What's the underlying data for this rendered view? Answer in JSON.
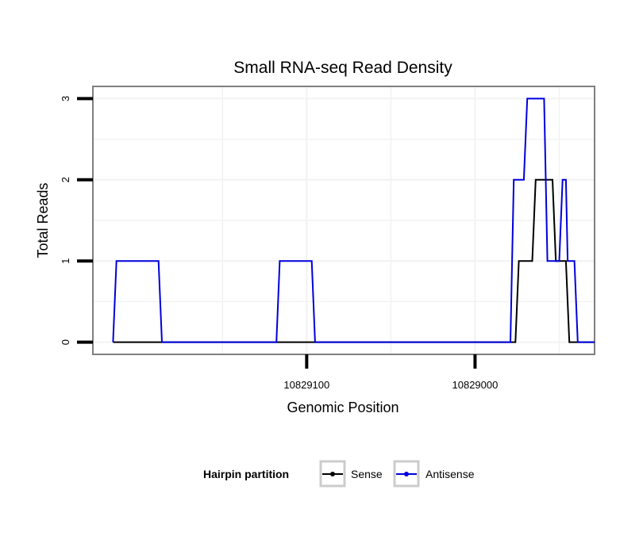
{
  "chart_data": {
    "type": "line",
    "title": "Small RNA-seq Read Density",
    "xlabel": "Genomic Position",
    "ylabel": "Total Reads",
    "xlim": [
      10829227,
      10828929
    ],
    "ylim": [
      -0.15,
      3.15
    ],
    "x_reversed": true,
    "x_ticks": [
      {
        "value": 10829100,
        "label": "10829100"
      },
      {
        "value": 10829000,
        "label": "10829000"
      }
    ],
    "y_ticks": [
      {
        "value": 0,
        "label": "0"
      },
      {
        "value": 1,
        "label": "1"
      },
      {
        "value": 2,
        "label": "2"
      },
      {
        "value": 3,
        "label": "3"
      }
    ],
    "grid": true,
    "legend": {
      "title": "Hairpin partition",
      "position": "bottom",
      "entries": [
        {
          "name": "Sense",
          "color": "#000000"
        },
        {
          "name": "Antisense",
          "color": "#0000dd"
        }
      ]
    },
    "series": [
      {
        "name": "Sense",
        "color": "#000000",
        "points": [
          [
            10829215,
            0
          ],
          [
            10828976,
            0
          ],
          [
            10828974,
            1
          ],
          [
            10828966,
            1
          ],
          [
            10828964,
            2
          ],
          [
            10828954,
            2
          ],
          [
            10828952,
            1
          ],
          [
            10828946,
            1
          ],
          [
            10828944,
            0
          ],
          [
            10828929,
            0
          ]
        ]
      },
      {
        "name": "Antisense",
        "color": "#0000dd",
        "points": [
          [
            10829215,
            0
          ],
          [
            10829213,
            1
          ],
          [
            10829188,
            1
          ],
          [
            10829186,
            0
          ],
          [
            10829118,
            0
          ],
          [
            10829116,
            1
          ],
          [
            10829097,
            1
          ],
          [
            10829095,
            0
          ],
          [
            10828979,
            0
          ],
          [
            10828977,
            2
          ],
          [
            10828971,
            2
          ],
          [
            10828969,
            3
          ],
          [
            10828959,
            3
          ],
          [
            10828957,
            1
          ],
          [
            10828950,
            1
          ],
          [
            10828948,
            2
          ],
          [
            10828946,
            2
          ],
          [
            10828945,
            1
          ],
          [
            10828941,
            1
          ],
          [
            10828939,
            0
          ],
          [
            10828929,
            0
          ]
        ]
      }
    ]
  }
}
